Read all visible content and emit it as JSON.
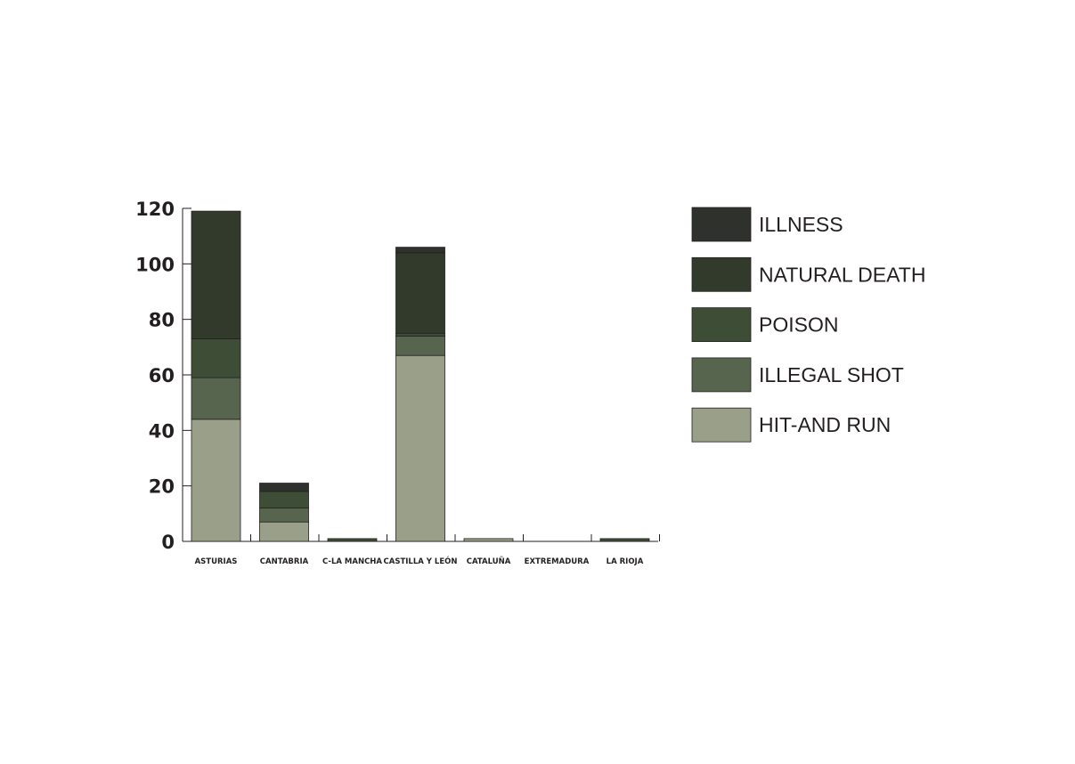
{
  "chart_data": {
    "type": "bar",
    "stacked": true,
    "title": "",
    "xlabel": "",
    "ylabel": "",
    "ylim": [
      0,
      120
    ],
    "yticks": [
      0,
      20,
      40,
      60,
      80,
      100,
      120
    ],
    "grid": false,
    "legend_position": "right",
    "categories": [
      "ASTURIAS",
      "CANTABRIA",
      "C-LA MANCHA",
      "CASTILLA Y LEÓN",
      "CATALUÑA",
      "EXTREMADURA",
      "LA RIOJA"
    ],
    "series": [
      {
        "name": "HIT-AND RUN",
        "color": "#9a9f8a",
        "values": [
          44,
          7,
          0,
          67,
          1,
          0,
          0
        ]
      },
      {
        "name": "ILLEGAL SHOT",
        "color": "#58654e",
        "values": [
          15,
          5,
          0,
          7,
          0,
          0,
          0
        ]
      },
      {
        "name": "POISON",
        "color": "#3e4e36",
        "values": [
          14,
          6,
          1,
          1,
          0,
          0,
          1
        ]
      },
      {
        "name": "NATURAL DEATH",
        "color": "#323a2b",
        "values": [
          46,
          0,
          0,
          29,
          0,
          0,
          0
        ]
      },
      {
        "name": "ILLNESS",
        "color": "#2f312d",
        "values": [
          0,
          3,
          0,
          2,
          0,
          0,
          0
        ]
      }
    ],
    "legend_order": [
      "ILLNESS",
      "NATURAL DEATH",
      "POISON",
      "ILLEGAL SHOT",
      "HIT-AND RUN"
    ]
  }
}
